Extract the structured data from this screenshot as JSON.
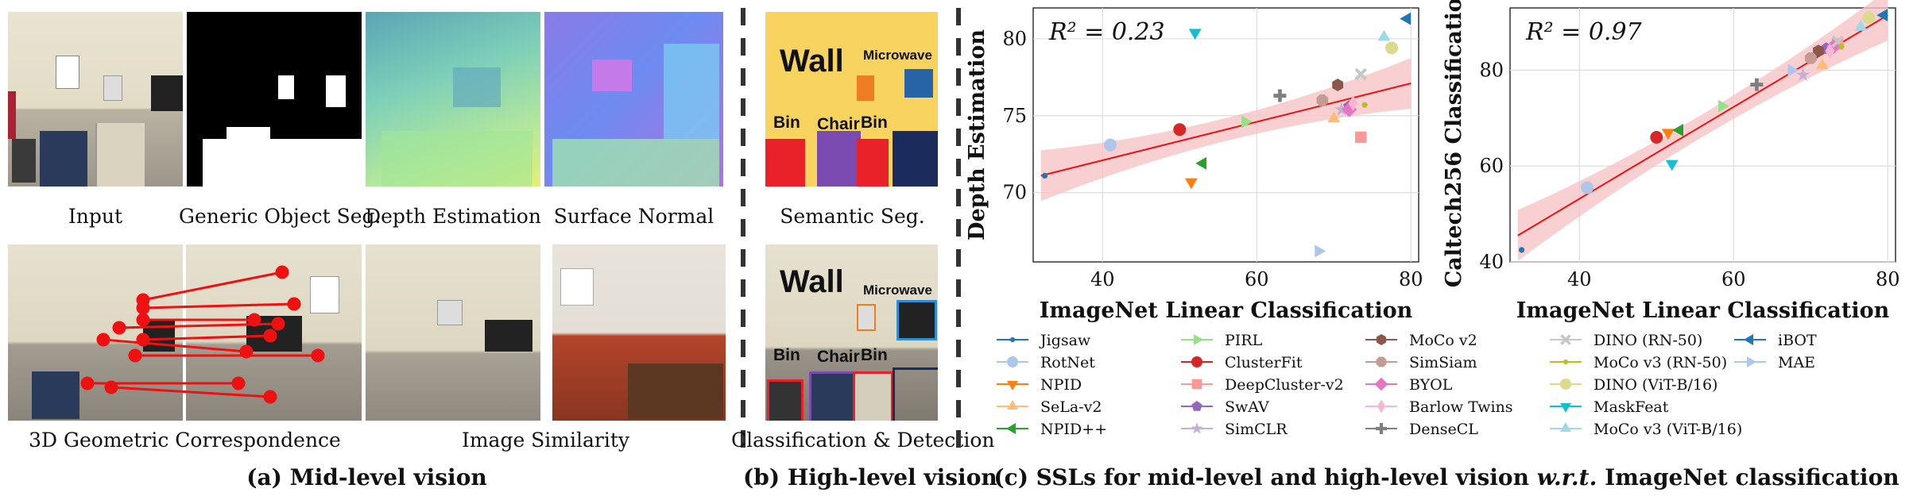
{
  "panel_a": {
    "tiles_top": [
      "Input",
      "Generic Object Seg.",
      "Depth Estimation",
      "Surface Normal"
    ],
    "tile_3d": "3D Geometric Correspondence",
    "tile_sim": "Image Similarity",
    "caption": "(a) Mid-level vision"
  },
  "panel_b": {
    "semantic_label": "Semantic Seg.",
    "detect_label": "Classification & Detection",
    "seg_words": {
      "wall": "Wall",
      "microwave": "Microwave",
      "bin1": "Bin",
      "chair": "Chair",
      "bin2": "Bin"
    },
    "caption": "(b) High-level vision"
  },
  "panel_c": {
    "caption_pre": "(c) SSLs for mid-level and high-level vision ",
    "caption_em": "w.r.t.",
    "caption_post": " ImageNet classification"
  },
  "chart_data": [
    {
      "type": "scatter",
      "xlabel": "ImageNet Linear Classification",
      "ylabel": "Depth Estimation",
      "annotation": "R² = 0.23",
      "xlim": [
        31,
        81
      ],
      "ylim": [
        65.5,
        82
      ],
      "xticks": [
        40,
        60,
        80
      ],
      "yticks": [
        70,
        75,
        80
      ],
      "grid": true,
      "fit": {
        "x": [
          32,
          80
        ],
        "y": [
          71.1,
          77.1
        ]
      },
      "points": [
        {
          "name": "Jigsaw",
          "x": 32.5,
          "y": 71.1
        },
        {
          "name": "RotNet",
          "x": 41.0,
          "y": 73.1
        },
        {
          "name": "NPID",
          "x": 51.5,
          "y": 70.7
        },
        {
          "name": "SeLa-v2",
          "x": 70.0,
          "y": 74.8
        },
        {
          "name": "NPID++",
          "x": 53.0,
          "y": 71.9
        },
        {
          "name": "PIRL",
          "x": 58.5,
          "y": 74.6
        },
        {
          "name": "ClusterFit",
          "x": 50.0,
          "y": 74.1
        },
        {
          "name": "DeepCluster-v2",
          "x": 73.5,
          "y": 73.6
        },
        {
          "name": "SwAV",
          "x": 72.0,
          "y": 75.6
        },
        {
          "name": "SimCLR",
          "x": 71.0,
          "y": 75.4
        },
        {
          "name": "MoCo v2",
          "x": 70.5,
          "y": 77.0
        },
        {
          "name": "SimSiam",
          "x": 68.5,
          "y": 76.0
        },
        {
          "name": "BYOL",
          "x": 72.0,
          "y": 75.4
        },
        {
          "name": "Barlow Twins",
          "x": 72.5,
          "y": 75.8
        },
        {
          "name": "DenseCL",
          "x": 63.0,
          "y": 76.3
        },
        {
          "name": "DINO (RN-50)",
          "x": 73.5,
          "y": 77.7
        },
        {
          "name": "MoCo v3 (RN-50)",
          "x": 74.0,
          "y": 75.7
        },
        {
          "name": "DINO (ViT-B/16)",
          "x": 77.5,
          "y": 79.4
        },
        {
          "name": "MaskFeat",
          "x": 52.0,
          "y": 80.4
        },
        {
          "name": "MoCo v3 (ViT-B/16)",
          "x": 76.5,
          "y": 80.1
        },
        {
          "name": "iBOT",
          "x": 79.5,
          "y": 81.3
        },
        {
          "name": "MAE",
          "x": 68.0,
          "y": 66.2
        }
      ]
    },
    {
      "type": "scatter",
      "xlabel": "ImageNet Linear Classification",
      "ylabel": "Caltech256 Classification",
      "annotation": "R² = 0.97",
      "xlim": [
        31,
        81
      ],
      "ylim": [
        40,
        93
      ],
      "xticks": [
        40,
        60,
        80
      ],
      "yticks": [
        40,
        60,
        80
      ],
      "grid": true,
      "fit": {
        "x": [
          32,
          80
        ],
        "y": [
          45.5,
          91.5
        ]
      },
      "points": [
        {
          "name": "Jigsaw",
          "x": 32.5,
          "y": 42.5
        },
        {
          "name": "RotNet",
          "x": 41.0,
          "y": 55.5
        },
        {
          "name": "NPID",
          "x": 51.5,
          "y": 67.0
        },
        {
          "name": "SeLa-v2",
          "x": 71.5,
          "y": 81.0
        },
        {
          "name": "NPID++",
          "x": 53.0,
          "y": 67.5
        },
        {
          "name": "PIRL",
          "x": 58.5,
          "y": 72.5
        },
        {
          "name": "ClusterFit",
          "x": 50.0,
          "y": 66.0
        },
        {
          "name": "DeepCluster-v2",
          "x": 73.5,
          "y": 85.5
        },
        {
          "name": "SwAV",
          "x": 72.0,
          "y": 84.5
        },
        {
          "name": "SimCLR",
          "x": 69.0,
          "y": 79.0
        },
        {
          "name": "MoCo v2",
          "x": 71.0,
          "y": 84.0
        },
        {
          "name": "SimSiam",
          "x": 70.0,
          "y": 82.5
        },
        {
          "name": "BYOL",
          "x": 73.0,
          "y": 85.0
        },
        {
          "name": "Barlow Twins",
          "x": 72.5,
          "y": 84.0
        },
        {
          "name": "DenseCL",
          "x": 63.0,
          "y": 77.0
        },
        {
          "name": "DINO (RN-50)",
          "x": 73.5,
          "y": 86.0
        },
        {
          "name": "MoCo v3 (RN-50)",
          "x": 74.0,
          "y": 85.0
        },
        {
          "name": "DINO (ViT-B/16)",
          "x": 77.5,
          "y": 91.0
        },
        {
          "name": "MaskFeat",
          "x": 52.0,
          "y": 60.5
        },
        {
          "name": "MoCo v3 (ViT-B/16)",
          "x": 76.5,
          "y": 89.0
        },
        {
          "name": "iBOT",
          "x": 79.5,
          "y": 91.5
        },
        {
          "name": "MAE",
          "x": 67.5,
          "y": 80.0
        }
      ]
    }
  ],
  "legend": [
    {
      "name": "Jigsaw",
      "marker": "dot",
      "color": "#1f77b4"
    },
    {
      "name": "RotNet",
      "marker": "circle",
      "color": "#aec7e8"
    },
    {
      "name": "NPID",
      "marker": "tri-down",
      "color": "#ff7f0e"
    },
    {
      "name": "SeLa-v2",
      "marker": "tri-up",
      "color": "#ffbb78"
    },
    {
      "name": "NPID++",
      "marker": "tri-left",
      "color": "#2ca02c"
    },
    {
      "name": "PIRL",
      "marker": "tri-right",
      "color": "#98df8a"
    },
    {
      "name": "ClusterFit",
      "marker": "circle",
      "color": "#d62728"
    },
    {
      "name": "DeepCluster-v2",
      "marker": "square",
      "color": "#ff9896"
    },
    {
      "name": "SwAV",
      "marker": "pentagon",
      "color": "#9467bd"
    },
    {
      "name": "SimCLR",
      "marker": "star",
      "color": "#c5b0d5"
    },
    {
      "name": "MoCo v2",
      "marker": "hexagon",
      "color": "#8c564b"
    },
    {
      "name": "SimSiam",
      "marker": "octagon",
      "color": "#c49c94"
    },
    {
      "name": "BYOL",
      "marker": "diamond",
      "color": "#e377c2"
    },
    {
      "name": "Barlow Twins",
      "marker": "thin-diamond",
      "color": "#f7b6d2"
    },
    {
      "name": "DenseCL",
      "marker": "plus",
      "color": "#7f7f7f"
    },
    {
      "name": "DINO (RN-50)",
      "marker": "x",
      "color": "#c7c7c7"
    },
    {
      "name": "MoCo v3 (RN-50)",
      "marker": "dot",
      "color": "#bcbd22"
    },
    {
      "name": "DINO (ViT-B/16)",
      "marker": "circle",
      "color": "#dbdb8d"
    },
    {
      "name": "MaskFeat",
      "marker": "tri-down",
      "color": "#17becf"
    },
    {
      "name": "MoCo v3 (ViT-B/16)",
      "marker": "tri-up",
      "color": "#9edae5"
    },
    {
      "name": "iBOT",
      "marker": "tri-left",
      "color": "#1f77b4"
    },
    {
      "name": "MAE",
      "marker": "tri-right",
      "color": "#aec7e8"
    }
  ]
}
